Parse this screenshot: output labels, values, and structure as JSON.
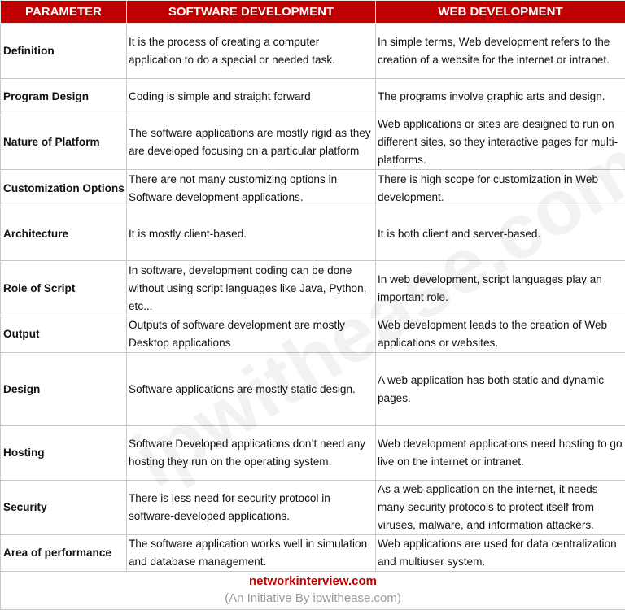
{
  "headers": [
    "PARAMETER",
    "SOFTWARE DEVELOPMENT",
    "WEB DEVELOPMENT"
  ],
  "rows": [
    {
      "param": "Definition",
      "software": "It is the process of creating a computer application to do a special or needed task.",
      "web": "In simple terms, Web development refers to the creation of a website for the internet or intranet."
    },
    {
      "param": "Program Design",
      "software": "Coding is simple and straight forward",
      "web": "The programs involve graphic arts and design."
    },
    {
      "param": "Nature of Platform",
      "software": "The software applications are mostly rigid as they are developed focusing on a particular platform",
      "web": "Web applications or sites are designed to run on different sites, so they interactive pages for multi-platforms."
    },
    {
      "param": "Customization Options",
      "software": "There are not many customizing options in Software development applications.",
      "web": "There is high scope for customization in Web development."
    },
    {
      "param": "Architecture",
      "software": "It is mostly client-based.",
      "web": "It is both client and server-based."
    },
    {
      "param": "Role of Script",
      "software": "In software, development coding can be done without using script languages like Java, Python, etc...",
      "web": "In web development, script languages play an important role."
    },
    {
      "param": "Output",
      "software": "Outputs of software development are mostly Desktop applications",
      "web": "Web development leads to the creation of Web applications or websites."
    },
    {
      "param": "Design",
      "software": "Software applications are mostly static design.",
      "web": "A web application has both static and dynamic pages."
    },
    {
      "param": "Hosting",
      "software": "Software Developed applications don’t need any hosting they run on the operating system.",
      "web": "Web development applications need hosting to go live on the internet or intranet."
    },
    {
      "param": "Security",
      "software": "There is less need for security protocol in software-developed applications.",
      "web": "As a web application on the internet, it needs many security protocols to protect itself from viruses, malware, and information attackers."
    },
    {
      "param": "Area of performance",
      "software": "The software application works well in simulation and database management.",
      "web": "Web applications are used for data centralization and multiuser system."
    }
  ],
  "footer": {
    "site": "networkinterview.com",
    "initiative": "(An Initiative By ipwithease.com)"
  },
  "watermark": "ipwithease.com",
  "colors": {
    "header_bg": "#c00000",
    "site": "#c00000"
  }
}
